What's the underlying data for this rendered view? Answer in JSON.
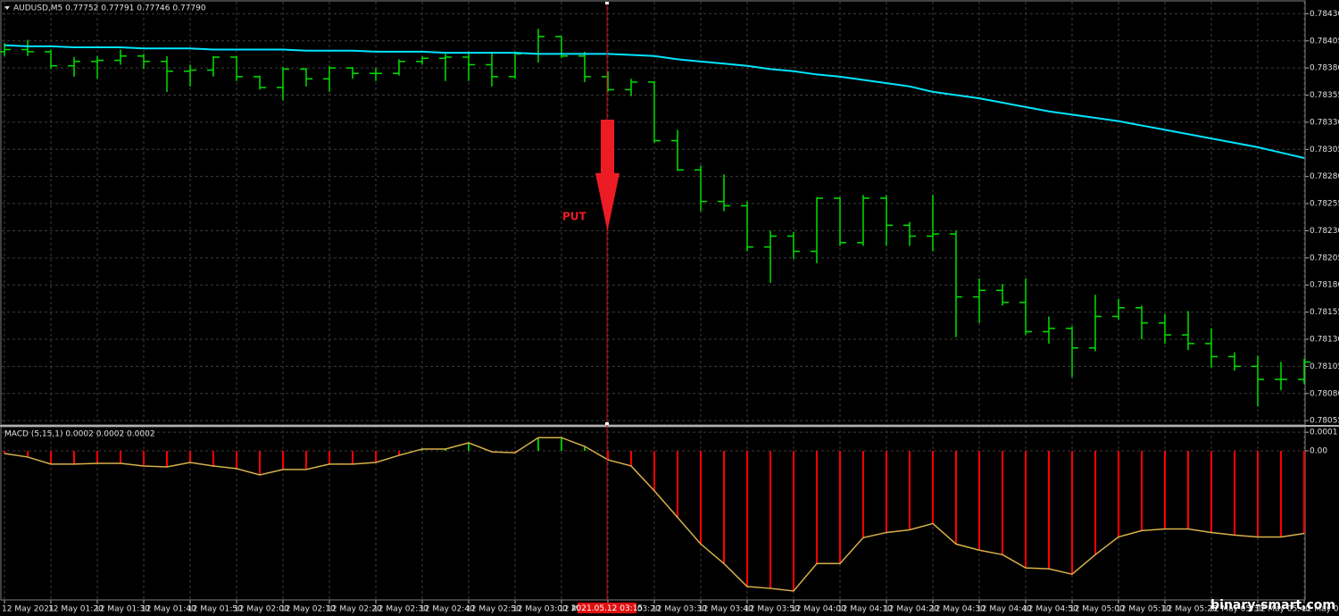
{
  "chart_data": [
    {
      "type": "ohlc",
      "header": "AUDUSD,M5  0.77752 0.77791 0.77746 0.77790",
      "color": "#00e000",
      "ma_color": "#00e5ff",
      "open": [
        0.78395,
        0.78397,
        0.78395,
        0.78382,
        0.78386,
        0.78387,
        0.78391,
        0.78386,
        0.78377,
        0.78378,
        0.7839,
        0.78372,
        0.78362,
        0.78379,
        0.7837,
        0.7838,
        0.78375,
        0.78375,
        0.78386,
        0.78389,
        0.7839,
        0.78383,
        0.78372,
        0.78393,
        0.78409,
        0.78391,
        0.78372,
        0.7836,
        0.78367,
        0.78313,
        0.78286,
        0.78257,
        0.78253,
        0.78215,
        0.78225,
        0.78211,
        0.7826,
        0.78219,
        0.7826,
        0.78235,
        0.78225,
        0.78227,
        0.78169,
        0.78175,
        0.78164,
        0.78137,
        0.7814,
        0.78122,
        0.78151,
        0.78159,
        0.78145,
        0.78134,
        0.78126,
        0.78114,
        0.78105,
        0.78093,
        0.78093
      ],
      "high": [
        0.78403,
        0.78406,
        0.78397,
        0.7839,
        0.78391,
        0.78397,
        0.78393,
        0.78391,
        0.78383,
        0.78391,
        0.78391,
        0.78373,
        0.78381,
        0.7838,
        0.78382,
        0.78381,
        0.7838,
        0.78388,
        0.78391,
        0.78393,
        0.78395,
        0.78395,
        0.78395,
        0.78416,
        0.78409,
        0.78395,
        0.78377,
        0.7837,
        0.78368,
        0.78323,
        0.7829,
        0.78282,
        0.78257,
        0.7823,
        0.78229,
        0.78261,
        0.78261,
        0.78263,
        0.78263,
        0.78238,
        0.78263,
        0.7823,
        0.78186,
        0.78181,
        0.78186,
        0.78151,
        0.78142,
        0.78171,
        0.78167,
        0.78161,
        0.78153,
        0.78156,
        0.7814,
        0.78118,
        0.78115,
        0.78109,
        0.78112
      ],
      "low": [
        0.78391,
        0.78391,
        0.78379,
        0.78372,
        0.7837,
        0.78383,
        0.78379,
        0.78358,
        0.78363,
        0.78372,
        0.78368,
        0.7836,
        0.7835,
        0.78363,
        0.78358,
        0.7837,
        0.78368,
        0.78373,
        0.78383,
        0.78368,
        0.78368,
        0.78363,
        0.7837,
        0.78385,
        0.78389,
        0.78367,
        0.78358,
        0.78354,
        0.78311,
        0.78285,
        0.78248,
        0.78248,
        0.78211,
        0.78182,
        0.78204,
        0.782,
        0.78216,
        0.78216,
        0.78216,
        0.78216,
        0.78211,
        0.78132,
        0.78145,
        0.78161,
        0.78134,
        0.78126,
        0.78095,
        0.78119,
        0.78148,
        0.7813,
        0.78126,
        0.7812,
        0.78104,
        0.78101,
        0.78068,
        0.78083,
        0.78089
      ],
      "close": [
        0.78397,
        0.78395,
        0.78382,
        0.78386,
        0.78387,
        0.78391,
        0.78386,
        0.78377,
        0.78378,
        0.7839,
        0.78372,
        0.78362,
        0.78379,
        0.7837,
        0.7838,
        0.78375,
        0.78375,
        0.78386,
        0.78389,
        0.7839,
        0.78383,
        0.78372,
        0.78393,
        0.78409,
        0.78391,
        0.78372,
        0.7836,
        0.78367,
        0.78313,
        0.78286,
        0.78257,
        0.78253,
        0.78215,
        0.78225,
        0.78211,
        0.7826,
        0.78219,
        0.7826,
        0.78235,
        0.78225,
        0.78227,
        0.78169,
        0.78175,
        0.78164,
        0.78137,
        0.7814,
        0.78122,
        0.78151,
        0.78159,
        0.78145,
        0.78134,
        0.78126,
        0.78114,
        0.78105,
        0.78093,
        0.78093,
        0.78109
      ],
      "ma": [
        0.78401,
        0.784,
        0.784,
        0.78399,
        0.78399,
        0.78399,
        0.78398,
        0.78398,
        0.78398,
        0.78397,
        0.78397,
        0.78397,
        0.78397,
        0.78396,
        0.78396,
        0.78396,
        0.78395,
        0.78395,
        0.78395,
        0.78394,
        0.78394,
        0.78394,
        0.78394,
        0.78393,
        0.78393,
        0.78393,
        0.78393,
        0.78392,
        0.78391,
        0.78388,
        0.78386,
        0.78384,
        0.78382,
        0.78379,
        0.78377,
        0.78374,
        0.78372,
        0.78369,
        0.78366,
        0.78363,
        0.78358,
        0.78355,
        0.78352,
        0.78348,
        0.78344,
        0.7834,
        0.78337,
        0.78334,
        0.78331,
        0.78327,
        0.78323,
        0.78319,
        0.78315,
        0.78311,
        0.78307,
        0.78302,
        0.78297
      ],
      "ylim": [
        0.78051,
        0.78441
      ],
      "yticks": [
        {
          "value": 0.7843,
          "label": "0.78430"
        },
        0.78405,
        {
          "value": 0.7838,
          "label": "0.78380"
        },
        0.78355,
        {
          "value": 0.7833,
          "label": "0.78330"
        },
        0.78305,
        {
          "value": 0.7828,
          "label": "0.78280"
        },
        0.78255,
        {
          "value": 0.7823,
          "label": "0.78230"
        },
        0.78205,
        {
          "value": 0.7818,
          "label": "0.78180"
        },
        0.78155,
        {
          "value": 0.7813,
          "label": "0.78130"
        },
        0.78105,
        {
          "value": 0.7808,
          "label": "0.78080"
        },
        0.78055
      ],
      "grid": true,
      "annotation": "PUT",
      "time_labels": [
        "12 May 2021",
        "12 May 01:20",
        "12 May 01:30",
        "12 May 01:40",
        "12 May 01:50",
        "12 May 02:00",
        "12 May 02:10",
        "12 May 02:20",
        "12 May 02:30",
        "12 May 02:40",
        "12 May 02:50",
        "12 May 03:00",
        "12 May 03:10",
        "12 May 03:20",
        "12 May 03:30",
        "12 May 03:40",
        "12 May 03:50",
        "12 May 04:00",
        "12 May 04:10",
        "12 May 04:20",
        "12 May 04:30",
        "12 May 04:40",
        "12 May 04:50",
        "12 May 05:00",
        "12 May 05:10",
        "12 May 05:20",
        "12 May 05:30",
        "12 May 05:40",
        "12 May 05:50"
      ],
      "cursor_label": "2021.05.12 03:15",
      "watermark": "binary-smart.com"
    },
    {
      "type": "macd",
      "title": "MACD (5,15,1) 0.0002 0.0002 0.0002",
      "up_color": "#00c000",
      "down_color": "#ff0000",
      "line_color": "#d8b04a",
      "values": [
        -1.4e-05,
        -3.3e-05,
        -7.1e-05,
        -7.1e-05,
        -6.7e-05,
        -6.7e-05,
        -8.1e-05,
        -8.6e-05,
        -6.2e-05,
        -8.1e-05,
        -9.5e-05,
        -0.000129,
        -0.0001,
        -0.0001,
        -7.1e-05,
        -7.1e-05,
        -6.2e-05,
        -2.4e-05,
        1e-05,
        1e-05,
        4.3e-05,
        -5e-06,
        -1e-05,
        7.1e-05,
        7.1e-05,
        2.4e-05,
        -4.8e-05,
        -8.1e-05,
        -0.000214,
        -0.000357,
        -0.0005,
        -0.000605,
        -0.000728,
        -0.000738,
        -0.000752,
        -0.000605,
        -0.000605,
        -0.000466,
        -0.000438,
        -0.000424,
        -0.00039,
        -0.0005,
        -0.000533,
        -0.000557,
        -0.000628,
        -0.000633,
        -0.000662,
        -0.000557,
        -0.000462,
        -0.000428,
        -0.000419,
        -0.000419,
        -0.000438,
        -0.000452,
        -0.000462,
        -0.000462,
        -0.000443
      ],
      "ylim": [
        -0.0008,
        0.00012
      ],
      "yticks": [
        0.0001,
        {
          "value": 0,
          "label": "0.00"
        }
      ],
      "grid": true
    }
  ]
}
